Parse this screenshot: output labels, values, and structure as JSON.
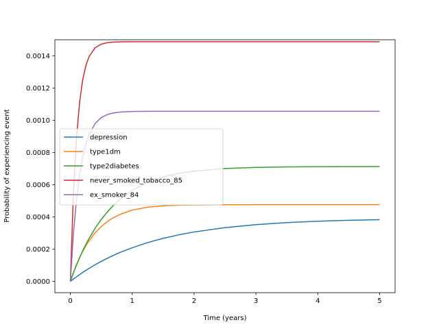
{
  "chart_data": {
    "type": "line",
    "title": "",
    "xlabel": "Time (years)",
    "ylabel": "Probability of experiencing event",
    "xlim": [
      -0.25,
      5.25
    ],
    "ylim": [
      -7e-05,
      0.0015
    ],
    "xticks": [
      0,
      1,
      2,
      3,
      4,
      5
    ],
    "xtick_labels": [
      "0",
      "1",
      "2",
      "3",
      "4",
      "5"
    ],
    "yticks": [
      0.0,
      0.0002,
      0.0004,
      0.0006,
      0.0008,
      0.001,
      0.0012,
      0.0014
    ],
    "ytick_labels": [
      "0.0000",
      "0.0002",
      "0.0004",
      "0.0006",
      "0.0008",
      "0.0010",
      "0.0012",
      "0.0014"
    ],
    "grid": false,
    "legend_position": "center-left",
    "x": [
      0,
      0.05,
      0.1,
      0.15,
      0.2,
      0.25,
      0.3,
      0.4,
      0.5,
      0.6,
      0.7,
      0.8,
      1.0,
      1.25,
      1.5,
      1.75,
      2.0,
      2.5,
      3.0,
      3.5,
      4.0,
      4.5,
      5.0
    ],
    "series": [
      {
        "name": "depression",
        "color": "#1f77b4",
        "values": [
          0.0,
          1.46e-05,
          2.87e-05,
          4.23e-05,
          5.54e-05,
          6.81e-05,
          8.02e-05,
          0.0001033,
          0.0001245,
          0.0001441,
          0.0001623,
          0.000179,
          0.0002088,
          0.0002408,
          0.0002671,
          0.0002888,
          0.0003068,
          0.0003338,
          0.0003522,
          0.0003648,
          0.0003734,
          0.0003793,
          0.0003833
        ]
      },
      {
        "name": "type1dm",
        "color": "#ff7f0e",
        "values": [
          0.0,
          5.53e-05,
          0.0001043,
          0.0001478,
          0.0001863,
          0.0002204,
          0.0002506,
          0.0003011,
          0.0003407,
          0.0003718,
          0.0003963,
          0.0004155,
          0.0004425,
          0.0004609,
          0.0004693,
          0.0004731,
          0.0004748,
          0.0004759,
          0.000476,
          0.000476,
          0.000476,
          0.000476,
          0.000476
        ]
      },
      {
        "name": "type2diabetes",
        "color": "#2ca02c",
        "values": [
          0.0,
          5.29e-05,
          0.000102,
          0.0001474,
          0.0001895,
          0.0002286,
          0.0002647,
          0.0003292,
          0.0003847,
          0.0004323,
          0.0004733,
          0.0005085,
          0.0005648,
          0.0006152,
          0.0006484,
          0.0006703,
          0.0006848,
          0.0007006,
          0.0007075,
          0.0007105,
          0.0007118,
          0.0007124,
          0.0007126
        ]
      },
      {
        "name": "never_smoked_tobacco_85",
        "color": "#d62728",
        "values": [
          0.0,
          0.0005479,
          0.000894,
          0.0011127,
          0.0012508,
          0.0013381,
          0.0013932,
          0.0014501,
          0.0014728,
          0.0014818,
          0.0014854,
          0.0014869,
          0.0014877,
          0.0014878,
          0.0014878,
          0.0014878,
          0.0014878,
          0.0014878,
          0.0014878,
          0.0014878,
          0.0014878,
          0.0014878,
          0.0014878
        ]
      },
      {
        "name": "ex_smoker_84",
        "color": "#9467bd",
        "values": [
          0.0,
          0.0002959,
          0.0005089,
          0.0006623,
          0.0007727,
          0.0008522,
          0.0009094,
          0.0009802,
          0.0010169,
          0.0010359,
          0.0010458,
          0.0010509,
          0.0010549,
          0.0010558,
          0.0010559,
          0.0010559,
          0.0010559,
          0.0010559,
          0.0010559,
          0.0010559,
          0.0010559,
          0.0010559,
          0.0010559
        ]
      }
    ]
  }
}
